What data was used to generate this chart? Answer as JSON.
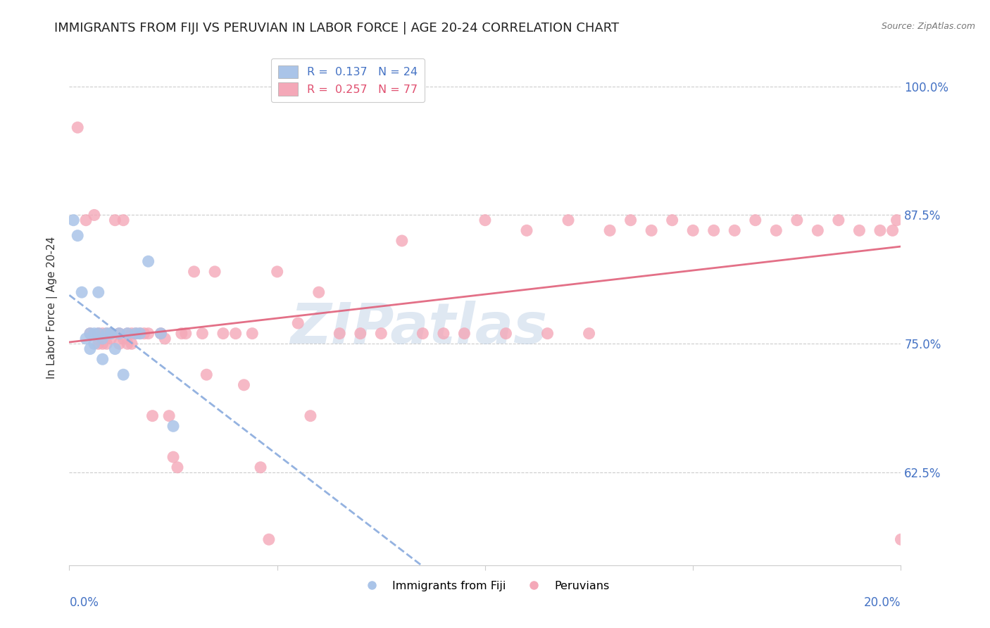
{
  "title": "IMMIGRANTS FROM FIJI VS PERUVIAN IN LABOR FORCE | AGE 20-24 CORRELATION CHART",
  "source": "Source: ZipAtlas.com",
  "ylabel": "In Labor Force | Age 20-24",
  "xmin": 0.0,
  "xmax": 0.2,
  "ymin": 0.535,
  "ymax": 1.035,
  "yticks": [
    0.625,
    0.75,
    0.875,
    1.0
  ],
  "ytick_labels": [
    "62.5%",
    "75.0%",
    "87.5%",
    "100.0%"
  ],
  "fiji_R": 0.137,
  "fiji_N": 24,
  "peru_R": 0.257,
  "peru_N": 77,
  "fiji_color": "#aac4e8",
  "fiji_line_color": "#88aadd",
  "peru_color": "#f4a8b8",
  "peru_line_color": "#e0607a",
  "watermark_text": "ZIPatlas",
  "background_color": "#ffffff",
  "grid_color": "#cccccc",
  "tick_label_color": "#4472c4",
  "title_color": "#222222",
  "title_fontsize": 13,
  "axis_label_fontsize": 11,
  "tick_fontsize": 11,
  "fiji_scatter_x": [
    0.001,
    0.002,
    0.003,
    0.004,
    0.005,
    0.005,
    0.006,
    0.006,
    0.007,
    0.007,
    0.008,
    0.008,
    0.009,
    0.01,
    0.01,
    0.011,
    0.012,
    0.013,
    0.014,
    0.016,
    0.017,
    0.019,
    0.022,
    0.025
  ],
  "fiji_scatter_y": [
    0.87,
    0.855,
    0.8,
    0.755,
    0.76,
    0.745,
    0.76,
    0.75,
    0.76,
    0.8,
    0.755,
    0.735,
    0.76,
    0.76,
    0.76,
    0.745,
    0.76,
    0.72,
    0.76,
    0.76,
    0.76,
    0.83,
    0.76,
    0.67
  ],
  "peru_scatter_x": [
    0.002,
    0.004,
    0.005,
    0.006,
    0.007,
    0.007,
    0.008,
    0.008,
    0.009,
    0.009,
    0.01,
    0.01,
    0.011,
    0.012,
    0.012,
    0.013,
    0.013,
    0.014,
    0.014,
    0.015,
    0.015,
    0.016,
    0.017,
    0.018,
    0.019,
    0.02,
    0.022,
    0.023,
    0.024,
    0.025,
    0.026,
    0.027,
    0.028,
    0.03,
    0.032,
    0.033,
    0.035,
    0.037,
    0.04,
    0.042,
    0.044,
    0.046,
    0.048,
    0.05,
    0.055,
    0.058,
    0.06,
    0.065,
    0.07,
    0.075,
    0.08,
    0.085,
    0.09,
    0.095,
    0.1,
    0.105,
    0.11,
    0.115,
    0.12,
    0.125,
    0.13,
    0.135,
    0.14,
    0.145,
    0.15,
    0.155,
    0.16,
    0.165,
    0.17,
    0.175,
    0.18,
    0.185,
    0.19,
    0.195,
    0.198,
    0.199,
    0.2
  ],
  "peru_scatter_y": [
    0.96,
    0.87,
    0.76,
    0.875,
    0.76,
    0.75,
    0.76,
    0.75,
    0.76,
    0.75,
    0.76,
    0.755,
    0.87,
    0.76,
    0.75,
    0.87,
    0.755,
    0.76,
    0.75,
    0.76,
    0.75,
    0.76,
    0.76,
    0.76,
    0.76,
    0.68,
    0.76,
    0.755,
    0.68,
    0.64,
    0.63,
    0.76,
    0.76,
    0.82,
    0.76,
    0.72,
    0.82,
    0.76,
    0.76,
    0.71,
    0.76,
    0.63,
    0.56,
    0.82,
    0.77,
    0.68,
    0.8,
    0.76,
    0.76,
    0.76,
    0.85,
    0.76,
    0.76,
    0.76,
    0.87,
    0.76,
    0.86,
    0.76,
    0.87,
    0.76,
    0.86,
    0.87,
    0.86,
    0.87,
    0.86,
    0.86,
    0.86,
    0.87,
    0.86,
    0.87,
    0.86,
    0.87,
    0.86,
    0.86,
    0.86,
    0.87,
    0.56
  ]
}
